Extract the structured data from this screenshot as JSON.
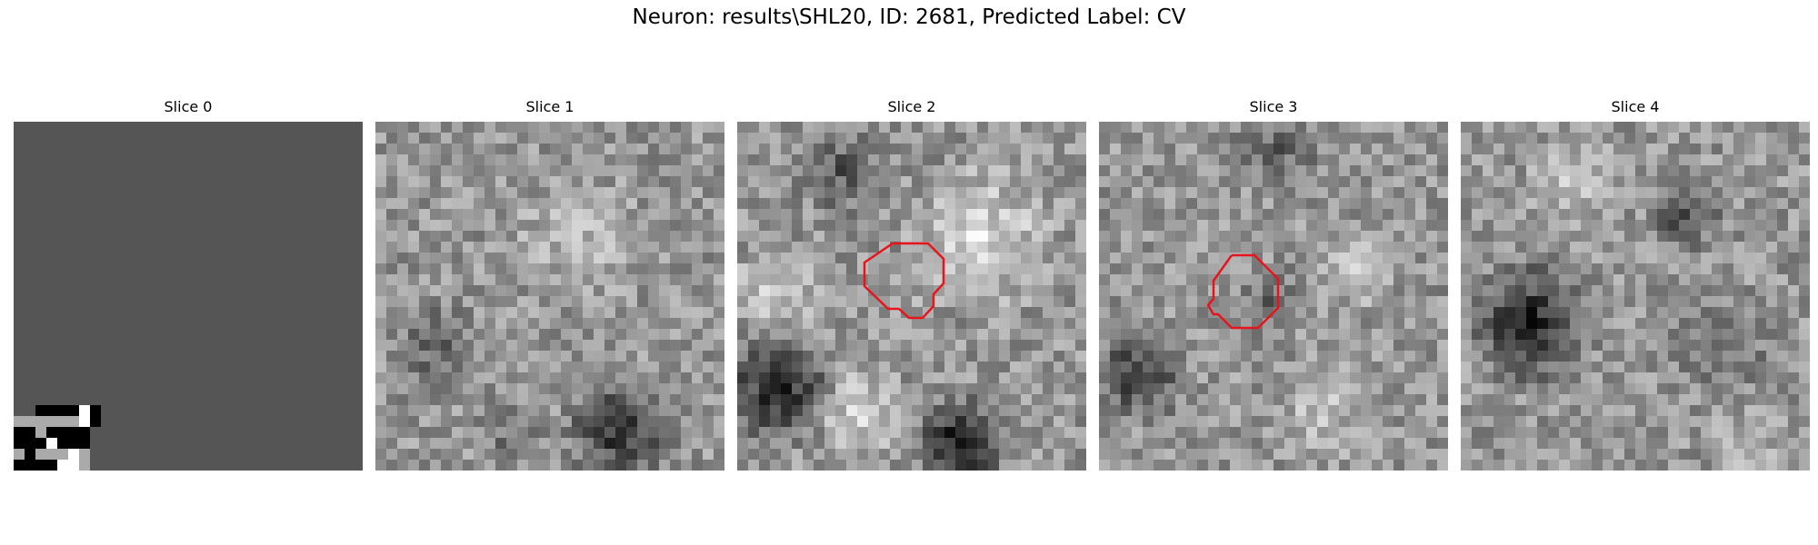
{
  "figure": {
    "title": "Neuron: results\\SHL20, ID: 2681, Predicted Label: CV"
  },
  "panels": [
    {
      "title": "Slice 0",
      "kind": "blank-with-corner-artifact",
      "has_contour": false
    },
    {
      "title": "Slice 1",
      "kind": "noise",
      "has_contour": false
    },
    {
      "title": "Slice 2",
      "kind": "noise",
      "has_contour": true
    },
    {
      "title": "Slice 3",
      "kind": "noise",
      "has_contour": true
    },
    {
      "title": "Slice 4",
      "kind": "noise",
      "has_contour": false
    }
  ],
  "colors": {
    "contour": "#e8141c",
    "background": "#ffffff",
    "flat_gray": "#555555"
  }
}
